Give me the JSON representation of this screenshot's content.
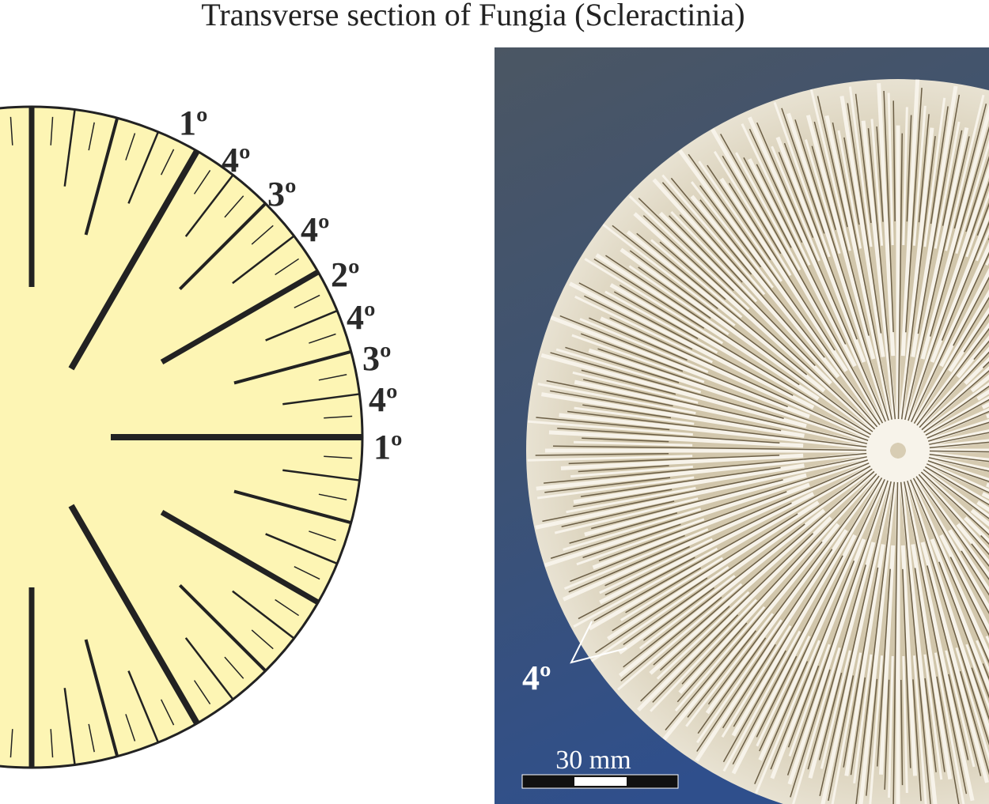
{
  "title": "Transverse section of Fungia (Scleractinia)",
  "diagram": {
    "septa_labels": [
      "1º",
      "4º",
      "3º",
      "4º",
      "2º",
      "4º",
      "3º",
      "4º",
      "1º"
    ]
  },
  "photo": {
    "label": "4º",
    "scale": "30 mm"
  }
}
